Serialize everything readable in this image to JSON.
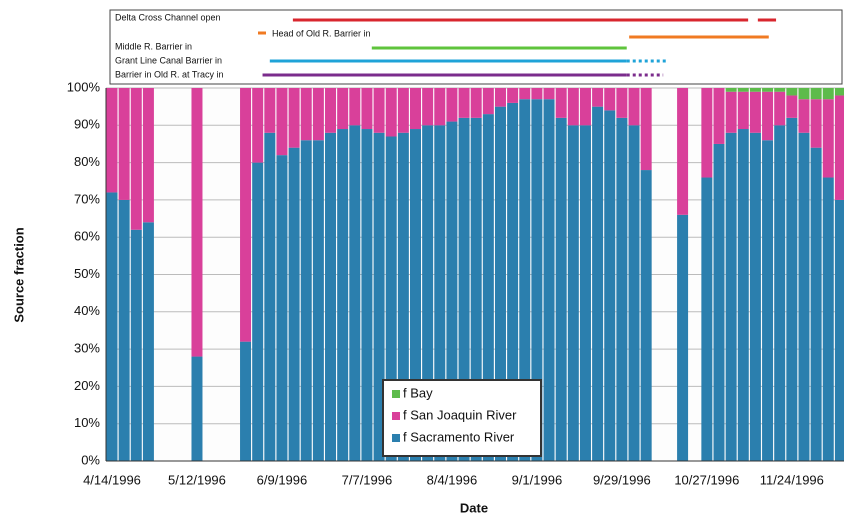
{
  "chart_data": {
    "type": "stacked_bar",
    "x_label": "Date",
    "y_label": "Source fraction",
    "categories": [
      "4/14/1996",
      null,
      null,
      null,
      null,
      null,
      null,
      "5/12/1996",
      null,
      null,
      null,
      null,
      null,
      null,
      "6/9/1996",
      null,
      null,
      null,
      null,
      null,
      null,
      "7/7/1996",
      null,
      null,
      null,
      null,
      null,
      null,
      "8/4/1996",
      null,
      null,
      null,
      null,
      null,
      null,
      "9/1/1996",
      null,
      null,
      null,
      null,
      null,
      null,
      "9/29/1996",
      null,
      null,
      null,
      null,
      null,
      null,
      "10/27/1996",
      null,
      null,
      null,
      null,
      null,
      null,
      "11/24/1996",
      null,
      null,
      null,
      null
    ],
    "series": [
      {
        "name": "f Sacramento River",
        "color": "#2b7fae",
        "values": [
          72,
          70,
          62,
          64,
          null,
          null,
          null,
          28,
          null,
          null,
          null,
          32,
          80,
          88,
          82,
          84,
          86,
          86,
          88,
          89,
          90,
          89,
          88,
          87,
          88,
          89,
          90,
          90,
          91,
          92,
          92,
          93,
          95,
          96,
          97,
          97,
          97,
          92,
          90,
          90,
          95,
          94,
          92,
          90,
          78,
          null,
          null,
          66,
          null,
          76,
          85,
          88,
          89,
          88,
          86,
          90,
          92,
          88,
          84,
          76,
          70
        ]
      },
      {
        "name": "f San Joaquin River",
        "color": "#d9409a",
        "values": [
          28,
          30,
          38,
          36,
          null,
          null,
          null,
          72,
          null,
          null,
          null,
          68,
          20,
          12,
          18,
          16,
          14,
          14,
          12,
          11,
          10,
          11,
          12,
          13,
          12,
          11,
          10,
          10,
          9,
          8,
          8,
          7,
          5,
          4,
          3,
          3,
          3,
          8,
          10,
          10,
          5,
          6,
          8,
          10,
          22,
          null,
          null,
          34,
          null,
          24,
          15,
          11,
          10,
          11,
          13,
          9,
          6,
          9,
          13,
          21,
          28
        ]
      },
      {
        "name": "f Bay",
        "color": "#5dbb4b",
        "values": [
          0,
          0,
          0,
          0,
          null,
          null,
          null,
          0,
          null,
          null,
          null,
          0,
          0,
          0,
          0,
          0,
          0,
          0,
          0,
          0,
          0,
          0,
          0,
          0,
          0,
          0,
          0,
          0,
          0,
          0,
          0,
          0,
          0,
          0,
          0,
          0,
          0,
          0,
          0,
          0,
          0,
          0,
          0,
          0,
          0,
          null,
          null,
          0,
          null,
          0,
          0,
          1,
          1,
          1,
          1,
          1,
          2,
          3,
          3,
          3,
          2
        ]
      }
    ],
    "ylim": [
      0,
      100
    ],
    "yticks": [
      {
        "value": 0,
        "label": "0%"
      },
      {
        "value": 10,
        "label": "10%"
      },
      {
        "value": 20,
        "label": "20%"
      },
      {
        "value": 30,
        "label": "30%"
      },
      {
        "value": 40,
        "label": "40%"
      },
      {
        "value": 50,
        "label": "50%"
      },
      {
        "value": 60,
        "label": "60%"
      },
      {
        "value": 70,
        "label": "70%"
      },
      {
        "value": 80,
        "label": "80%"
      },
      {
        "value": 90,
        "label": "90%"
      },
      {
        "value": 100,
        "label": "100%"
      }
    ],
    "grid": true,
    "events": [
      {
        "label": "Delta Cross Channel open",
        "color": "#d8262e",
        "segments": [
          {
            "start": 14.9,
            "end": 52.4,
            "dashed": false
          },
          {
            "start": 53.2,
            "end": 54.7,
            "dashed": false
          }
        ]
      },
      {
        "label": "Head of Old R. Barrier in",
        "color": "#f07a22",
        "segments": [
          {
            "start": 42.6,
            "end": 54.1,
            "dashed": false
          }
        ]
      },
      {
        "label": "Middle R. Barrier in",
        "color": "#5fc43c",
        "segments": [
          {
            "start": 21.4,
            "end": 42.4,
            "dashed": false
          }
        ]
      },
      {
        "label": "Grant Line Canal Barrier in",
        "color": "#1fa3d8",
        "segments": [
          {
            "start": 13,
            "end": 42.4,
            "dashed": false
          },
          {
            "start": 42.4,
            "end": 45.7,
            "dashed": true
          }
        ]
      },
      {
        "label": "Barrier in Old R. at Tracy in",
        "color": "#7b2c8c",
        "segments": [
          {
            "start": 12.4,
            "end": 42.4,
            "dashed": false
          },
          {
            "start": 42.4,
            "end": 45.4,
            "dashed": true
          }
        ]
      }
    ]
  }
}
